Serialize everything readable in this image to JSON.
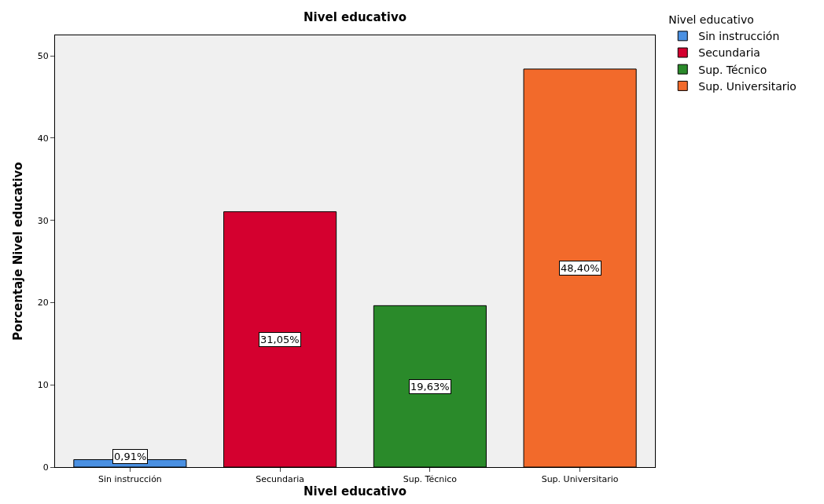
{
  "chart_data": {
    "type": "bar",
    "title": "Nivel educativo",
    "xlabel": "Nivel educativo",
    "ylabel": "Porcentaje Nivel educativo",
    "legend_title": "Nivel educativo",
    "categories": [
      "Sin instrucción",
      "Secundaria",
      "Sup. Técnico",
      "Sup. Universitario"
    ],
    "series": [
      {
        "name": "Sin instrucción",
        "color": "#4a90e2",
        "values": [
          0.91,
          null,
          null,
          null
        ],
        "value_labels": [
          "0,91%",
          null,
          null,
          null
        ]
      },
      {
        "name": "Secundaria",
        "color": "#d4002f",
        "values": [
          null,
          31.05,
          null,
          null
        ],
        "value_labels": [
          null,
          "31,05%",
          null,
          null
        ]
      },
      {
        "name": "Sup. Técnico",
        "color": "#2a8a2a",
        "values": [
          null,
          null,
          19.63,
          null
        ],
        "value_labels": [
          null,
          null,
          "19,63%",
          null
        ]
      },
      {
        "name": "Sup. Universitario",
        "color": "#f26a2b",
        "values": [
          null,
          null,
          null,
          48.4
        ],
        "value_labels": [
          null,
          null,
          null,
          "48,40%"
        ]
      }
    ],
    "ylim": [
      0,
      52.5
    ],
    "yticks": [
      0,
      10,
      20,
      30,
      40,
      50
    ],
    "grid": false,
    "legend": "top right"
  }
}
